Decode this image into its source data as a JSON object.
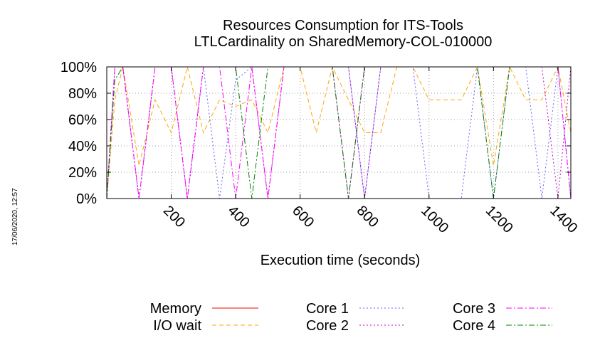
{
  "chart_data": {
    "type": "line",
    "title": [
      "Resources Consumption for ITS-Tools",
      "LTLCardinality on SharedMemory-COL-010000"
    ],
    "xlabel": "Execution time (seconds)",
    "ylabel": "",
    "xlim": [
      0,
      1440
    ],
    "ylim": [
      0,
      100
    ],
    "x_ticks": [
      200,
      400,
      600,
      800,
      1000,
      1200,
      1400
    ],
    "x_tick_labels": [
      "200",
      "400",
      "600",
      "800",
      "1000",
      "1200",
      "1400"
    ],
    "y_ticks": [
      0,
      20,
      40,
      60,
      80,
      100
    ],
    "y_tick_labels": [
      "0%",
      "20%",
      "40%",
      "60%",
      "80%",
      "100%"
    ],
    "grid": true,
    "legend_position": "bottom",
    "timestamp": "17/06/2020, 12:57",
    "series": [
      {
        "name": "Memory",
        "color": "#ff0000",
        "dash": "solid",
        "points": [
          [
            0,
            100
          ],
          [
            1440,
            100
          ]
        ]
      },
      {
        "name": "I/O wait",
        "color": "#ffa500",
        "dash": "dashed",
        "points": [
          [
            0,
            0
          ],
          [
            25,
            75
          ],
          [
            50,
            100
          ],
          [
            100,
            25
          ],
          [
            150,
            75
          ],
          [
            200,
            50
          ],
          [
            250,
            100
          ],
          [
            300,
            50
          ],
          [
            350,
            75
          ],
          [
            400,
            70
          ],
          [
            450,
            75
          ],
          [
            500,
            50
          ],
          [
            550,
            100
          ],
          [
            600,
            100
          ],
          [
            650,
            50
          ],
          [
            700,
            100
          ],
          [
            750,
            75
          ],
          [
            800,
            50
          ],
          [
            850,
            50
          ],
          [
            900,
            100
          ],
          [
            950,
            100
          ],
          [
            1000,
            75
          ],
          [
            1050,
            75
          ],
          [
            1100,
            75
          ],
          [
            1150,
            100
          ],
          [
            1200,
            25
          ],
          [
            1250,
            100
          ],
          [
            1300,
            75
          ],
          [
            1350,
            75
          ],
          [
            1400,
            100
          ],
          [
            1440,
            50
          ]
        ]
      },
      {
        "name": "Core 1",
        "color": "#6060ff",
        "dash": "dotted",
        "points": [
          [
            0,
            0
          ],
          [
            25,
            100
          ],
          [
            50,
            100
          ],
          [
            100,
            0
          ],
          [
            150,
            100
          ],
          [
            200,
            100
          ],
          [
            250,
            0
          ],
          [
            300,
            100
          ],
          [
            350,
            0
          ],
          [
            400,
            90
          ],
          [
            450,
            100
          ],
          [
            500,
            100
          ],
          [
            550,
            100
          ],
          [
            600,
            100
          ],
          [
            700,
            100
          ],
          [
            750,
            100
          ],
          [
            800,
            0
          ],
          [
            850,
            100
          ],
          [
            900,
            100
          ],
          [
            950,
            100
          ],
          [
            1000,
            0
          ],
          [
            1050,
            0
          ],
          [
            1100,
            0
          ],
          [
            1150,
            100
          ],
          [
            1200,
            0
          ],
          [
            1250,
            100
          ],
          [
            1300,
            100
          ],
          [
            1350,
            0
          ],
          [
            1400,
            100
          ],
          [
            1440,
            0
          ]
        ]
      },
      {
        "name": "Core 2",
        "color": "#c000c0",
        "dash": "dotted",
        "points": [
          [
            0,
            0
          ],
          [
            25,
            100
          ],
          [
            50,
            100
          ],
          [
            100,
            0
          ],
          [
            150,
            100
          ],
          [
            200,
            100
          ],
          [
            250,
            0
          ],
          [
            300,
            100
          ],
          [
            350,
            100
          ],
          [
            400,
            100
          ],
          [
            450,
            100
          ],
          [
            500,
            0
          ],
          [
            550,
            100
          ],
          [
            600,
            100
          ],
          [
            650,
            100
          ],
          [
            700,
            100
          ],
          [
            750,
            100
          ],
          [
            800,
            0
          ],
          [
            850,
            100
          ],
          [
            900,
            100
          ],
          [
            950,
            100
          ],
          [
            1000,
            100
          ],
          [
            1100,
            100
          ],
          [
            1150,
            100
          ],
          [
            1200,
            100
          ],
          [
            1250,
            100
          ],
          [
            1300,
            100
          ],
          [
            1350,
            100
          ],
          [
            1400,
            0
          ],
          [
            1440,
            100
          ]
        ]
      },
      {
        "name": "Core 3",
        "color": "#ff00ff",
        "dash": "dashdot",
        "points": [
          [
            0,
            0
          ],
          [
            25,
            100
          ],
          [
            50,
            100
          ],
          [
            100,
            0
          ],
          [
            150,
            100
          ],
          [
            200,
            100
          ],
          [
            250,
            0
          ],
          [
            300,
            100
          ],
          [
            350,
            100
          ],
          [
            400,
            0
          ],
          [
            450,
            100
          ],
          [
            500,
            0
          ],
          [
            550,
            100
          ],
          [
            600,
            100
          ],
          [
            650,
            100
          ],
          [
            700,
            100
          ],
          [
            750,
            0
          ],
          [
            800,
            100
          ],
          [
            850,
            100
          ],
          [
            900,
            100
          ],
          [
            1000,
            100
          ],
          [
            1100,
            100
          ],
          [
            1150,
            100
          ],
          [
            1200,
            100
          ],
          [
            1250,
            100
          ],
          [
            1300,
            100
          ],
          [
            1350,
            100
          ],
          [
            1400,
            100
          ],
          [
            1440,
            0
          ]
        ]
      },
      {
        "name": "Core 4",
        "color": "#008000",
        "dash": "dashdot",
        "points": [
          [
            0,
            0
          ],
          [
            25,
            90
          ],
          [
            50,
            100
          ],
          [
            100,
            100
          ],
          [
            200,
            100
          ],
          [
            300,
            100
          ],
          [
            400,
            100
          ],
          [
            450,
            0
          ],
          [
            500,
            100
          ],
          [
            550,
            100
          ],
          [
            600,
            100
          ],
          [
            650,
            100
          ],
          [
            700,
            100
          ],
          [
            750,
            0
          ],
          [
            800,
            100
          ],
          [
            900,
            100
          ],
          [
            1000,
            100
          ],
          [
            1100,
            100
          ],
          [
            1150,
            100
          ],
          [
            1200,
            0
          ],
          [
            1250,
            100
          ],
          [
            1300,
            100
          ],
          [
            1350,
            100
          ],
          [
            1400,
            100
          ],
          [
            1440,
            100
          ]
        ]
      }
    ]
  }
}
